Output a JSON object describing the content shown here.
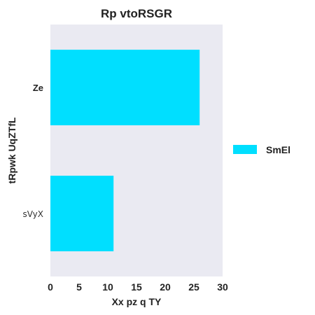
{
  "chart_data": {
    "type": "bar",
    "orientation": "horizontal",
    "title": "Rp vtoRSGR",
    "xlabel": "Xx pz q  TY",
    "ylabel": "tRpwk UqZTfL",
    "categories": [
      "Ze",
      "sVyX"
    ],
    "category_label_bold": [
      true,
      false
    ],
    "series": [
      {
        "name": "SmEl",
        "values": [
          26,
          11
        ],
        "color": "#00dfff"
      }
    ],
    "xlim": [
      0,
      30
    ],
    "xticks": [
      "0",
      "5",
      "10",
      "15",
      "20",
      "25",
      "30"
    ],
    "grid": false,
    "legend": "right",
    "plot_background": "#eaeaf2"
  }
}
